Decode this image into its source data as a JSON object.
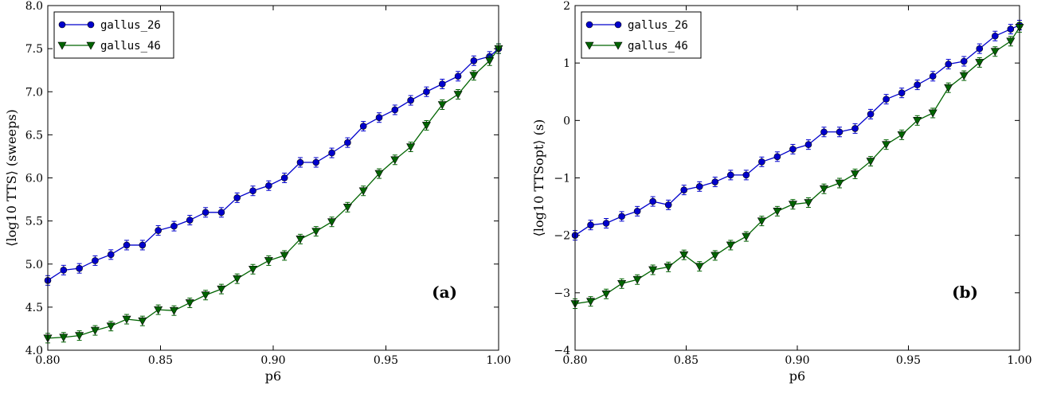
{
  "chart_data": [
    {
      "type": "line",
      "panel_label": "(a)",
      "xlabel": "p6",
      "ylabel": "⟨log10 TTS⟩ (sweeps)",
      "xlim": [
        0.8,
        1.0
      ],
      "ylim": [
        4.0,
        8.0
      ],
      "xticks": [
        "0.80",
        "0.85",
        "0.90",
        "0.95",
        "1.00"
      ],
      "yticks": [
        "4.0",
        "4.5",
        "5.0",
        "5.5",
        "6.0",
        "6.5",
        "7.0",
        "7.5",
        "8.0"
      ],
      "legend_position": "top-left",
      "grid": false,
      "x": [
        0.8,
        0.807,
        0.814,
        0.821,
        0.828,
        0.835,
        0.842,
        0.849,
        0.856,
        0.863,
        0.87,
        0.877,
        0.884,
        0.891,
        0.898,
        0.905,
        0.912,
        0.919,
        0.926,
        0.933,
        0.94,
        0.947,
        0.954,
        0.961,
        0.968,
        0.975,
        0.982,
        0.989,
        0.996,
        1.0
      ],
      "series": [
        {
          "name": "gallus_26",
          "color": "#0000cc",
          "marker": "circle",
          "values": [
            4.81,
            4.93,
            4.95,
            5.04,
            5.11,
            5.22,
            5.22,
            5.39,
            5.44,
            5.51,
            5.6,
            5.6,
            5.77,
            5.85,
            5.91,
            6.0,
            6.18,
            6.18,
            6.29,
            6.41,
            6.6,
            6.7,
            6.79,
            6.9,
            7.0,
            7.09,
            7.18,
            7.36,
            7.41,
            7.5
          ]
        },
        {
          "name": "gallus_46",
          "color": "#006400",
          "marker": "triangle-down",
          "values": [
            4.14,
            4.15,
            4.17,
            4.23,
            4.28,
            4.36,
            4.34,
            4.47,
            4.46,
            4.55,
            4.64,
            4.71,
            4.83,
            4.94,
            5.04,
            5.1,
            5.29,
            5.38,
            5.49,
            5.66,
            5.85,
            6.05,
            6.21,
            6.36,
            6.61,
            6.85,
            6.97,
            7.19,
            7.36,
            7.5
          ]
        }
      ]
    },
    {
      "type": "line",
      "panel_label": "(b)",
      "xlabel": "p6",
      "ylabel": "⟨log10 TTSopt⟩ (s)",
      "xlim": [
        0.8,
        1.0
      ],
      "ylim": [
        -4,
        2
      ],
      "xticks": [
        "0.80",
        "0.85",
        "0.90",
        "0.95",
        "1.00"
      ],
      "yticks": [
        "−4",
        "−3",
        "−2",
        "−1",
        "0",
        "1",
        "2"
      ],
      "legend_position": "top-left",
      "grid": false,
      "x": [
        0.8,
        0.807,
        0.814,
        0.821,
        0.828,
        0.835,
        0.842,
        0.849,
        0.856,
        0.863,
        0.87,
        0.877,
        0.884,
        0.891,
        0.898,
        0.905,
        0.912,
        0.919,
        0.926,
        0.933,
        0.94,
        0.947,
        0.954,
        0.961,
        0.968,
        0.975,
        0.982,
        0.989,
        0.996,
        1.0
      ],
      "series": [
        {
          "name": "gallus_26",
          "color": "#0000cc",
          "marker": "circle",
          "values": [
            -2.0,
            -1.82,
            -1.79,
            -1.67,
            -1.58,
            -1.41,
            -1.47,
            -1.21,
            -1.15,
            -1.07,
            -0.95,
            -0.95,
            -0.72,
            -0.63,
            -0.5,
            -0.42,
            -0.2,
            -0.2,
            -0.14,
            0.11,
            0.37,
            0.48,
            0.62,
            0.77,
            0.98,
            1.03,
            1.25,
            1.47,
            1.59,
            1.66
          ]
        },
        {
          "name": "gallus_46",
          "color": "#006400",
          "marker": "triangle-down",
          "values": [
            -3.19,
            -3.15,
            -3.02,
            -2.84,
            -2.77,
            -2.6,
            -2.55,
            -2.34,
            -2.54,
            -2.35,
            -2.17,
            -2.02,
            -1.75,
            -1.58,
            -1.46,
            -1.43,
            -1.19,
            -1.09,
            -0.93,
            -0.71,
            -0.42,
            -0.25,
            0.0,
            0.13,
            0.57,
            0.78,
            1.01,
            1.2,
            1.38,
            1.62
          ]
        }
      ]
    }
  ]
}
